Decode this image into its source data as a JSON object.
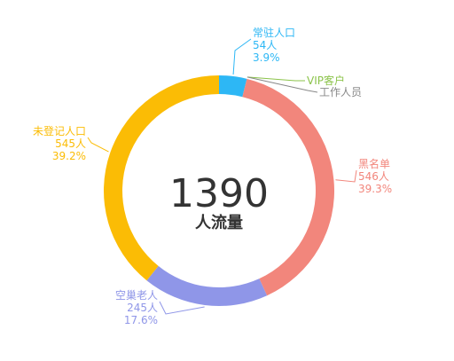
{
  "chart_data": {
    "type": "pie",
    "variant": "donut",
    "total": 1390,
    "center_label": "人流量",
    "slices": [
      {
        "name": "常驻人口",
        "value": 54,
        "value_label": "54人",
        "percent_label": "3.9%",
        "color": "#2db7f5"
      },
      {
        "name": "VIP客户",
        "value": 0,
        "value_label": "",
        "percent_label": "",
        "color": "#8bc34a"
      },
      {
        "name": "工作人员",
        "value": 0,
        "value_label": "",
        "percent_label": "",
        "color": "#888888"
      },
      {
        "name": "黑名单",
        "value": 546,
        "value_label": "546人",
        "percent_label": "39.3%",
        "color": "#f2867c"
      },
      {
        "name": "空巢老人",
        "value": 245,
        "value_label": "245人",
        "percent_label": "17.6%",
        "color": "#8f96e8"
      },
      {
        "name": "未登记人口",
        "value": 545,
        "value_label": "545人",
        "percent_label": "39.2%",
        "color": "#fbbc05"
      }
    ]
  }
}
